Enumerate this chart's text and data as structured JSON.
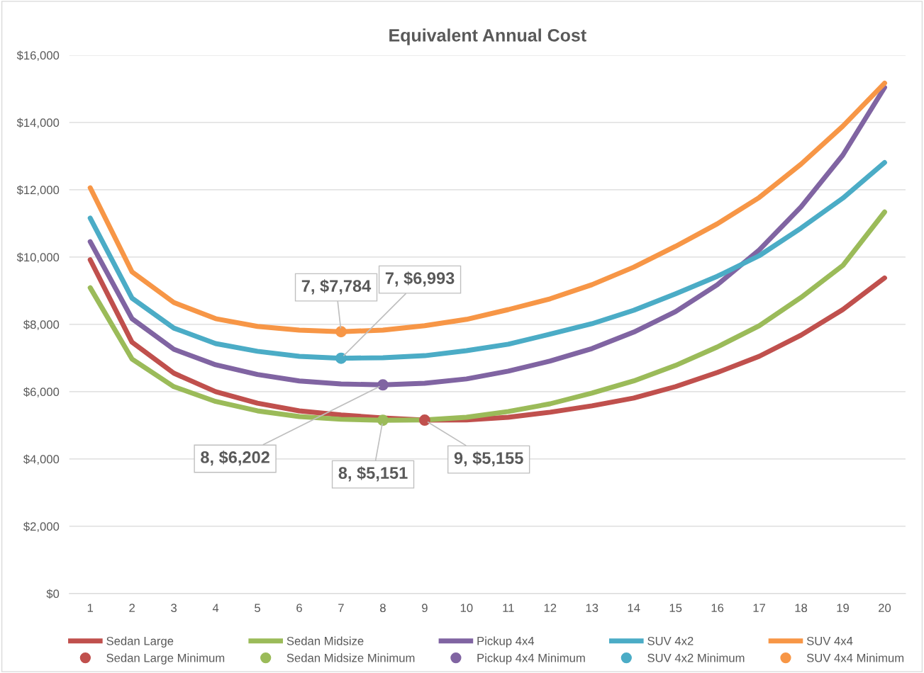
{
  "chart_data": {
    "type": "line",
    "title": "Equivalent Annual Cost",
    "categories": [
      "1",
      "2",
      "3",
      "4",
      "5",
      "6",
      "7",
      "8",
      "9",
      "10",
      "11",
      "12",
      "13",
      "14",
      "15",
      "16",
      "17",
      "18",
      "19",
      "20"
    ],
    "ylim": [
      0,
      16000
    ],
    "yticks": [
      {
        "value": 0,
        "label": "$0"
      },
      {
        "value": 2000,
        "label": "$2,000"
      },
      {
        "value": 4000,
        "label": "$4,000"
      },
      {
        "value": 6000,
        "label": "$6,000"
      },
      {
        "value": 8000,
        "label": "$8,000"
      },
      {
        "value": 10000,
        "label": "$10,000"
      },
      {
        "value": 12000,
        "label": "$12,000"
      },
      {
        "value": 14000,
        "label": "$14,000"
      },
      {
        "value": 16000,
        "label": "$16,000"
      }
    ],
    "grid": "y",
    "legend": "bottom",
    "marker": "none",
    "series": [
      {
        "name": "Sedan Large",
        "color": "#c0504d",
        "values": [
          9920,
          7470,
          6550,
          6000,
          5660,
          5430,
          5310,
          5220,
          5155,
          5160,
          5240,
          5390,
          5580,
          5810,
          6150,
          6570,
          7050,
          7680,
          8440,
          9380
        ]
      },
      {
        "name": "Sedan Large Minimum",
        "type": "scatter",
        "marker": "circle",
        "color": "#c0504d",
        "x": [
          "9"
        ],
        "values": [
          5155
        ],
        "value_labels": [
          "9, $5,155"
        ]
      },
      {
        "name": "Sedan Midsize",
        "color": "#9bbb59",
        "values": [
          9090,
          6970,
          6150,
          5710,
          5430,
          5260,
          5180,
          5151,
          5160,
          5240,
          5410,
          5640,
          5960,
          6320,
          6780,
          7330,
          7960,
          8800,
          9750,
          11340
        ]
      },
      {
        "name": "Sedan Midsize Minimum",
        "type": "scatter",
        "marker": "circle",
        "color": "#9bbb59",
        "x": [
          "8"
        ],
        "values": [
          5151
        ],
        "value_labels": [
          "8, $5,151"
        ]
      },
      {
        "name": "Pickup 4x4",
        "color": "#8064a2",
        "values": [
          10460,
          8170,
          7260,
          6800,
          6510,
          6320,
          6230,
          6202,
          6250,
          6380,
          6610,
          6910,
          7280,
          7770,
          8380,
          9180,
          10210,
          11490,
          13030,
          15040
        ]
      },
      {
        "name": "Pickup 4x4 Minimum",
        "type": "scatter",
        "marker": "circle",
        "color": "#8064a2",
        "x": [
          "8"
        ],
        "values": [
          6202
        ],
        "value_labels": [
          "8, $6,202"
        ]
      },
      {
        "name": "SUV 4x2",
        "color": "#4bacc6",
        "values": [
          11160,
          8780,
          7890,
          7430,
          7200,
          7050,
          6993,
          7010,
          7070,
          7220,
          7410,
          7710,
          8020,
          8420,
          8910,
          9430,
          10040,
          10860,
          11750,
          12810
        ]
      },
      {
        "name": "SUV 4x2 Minimum",
        "type": "scatter",
        "marker": "circle",
        "color": "#4bacc6",
        "x": [
          "7"
        ],
        "values": [
          6993
        ],
        "value_labels": [
          "7, $6,993"
        ]
      },
      {
        "name": "SUV 4x4",
        "color": "#f79646",
        "values": [
          12060,
          9560,
          8650,
          8170,
          7940,
          7830,
          7784,
          7830,
          7960,
          8150,
          8440,
          8760,
          9180,
          9700,
          10320,
          10990,
          11770,
          12760,
          13890,
          15170
        ]
      },
      {
        "name": "SUV 4x4 Minimum",
        "type": "scatter",
        "marker": "circle",
        "color": "#f79646",
        "x": [
          "7"
        ],
        "values": [
          7784
        ],
        "value_labels": [
          "7, $7,784"
        ]
      }
    ]
  }
}
